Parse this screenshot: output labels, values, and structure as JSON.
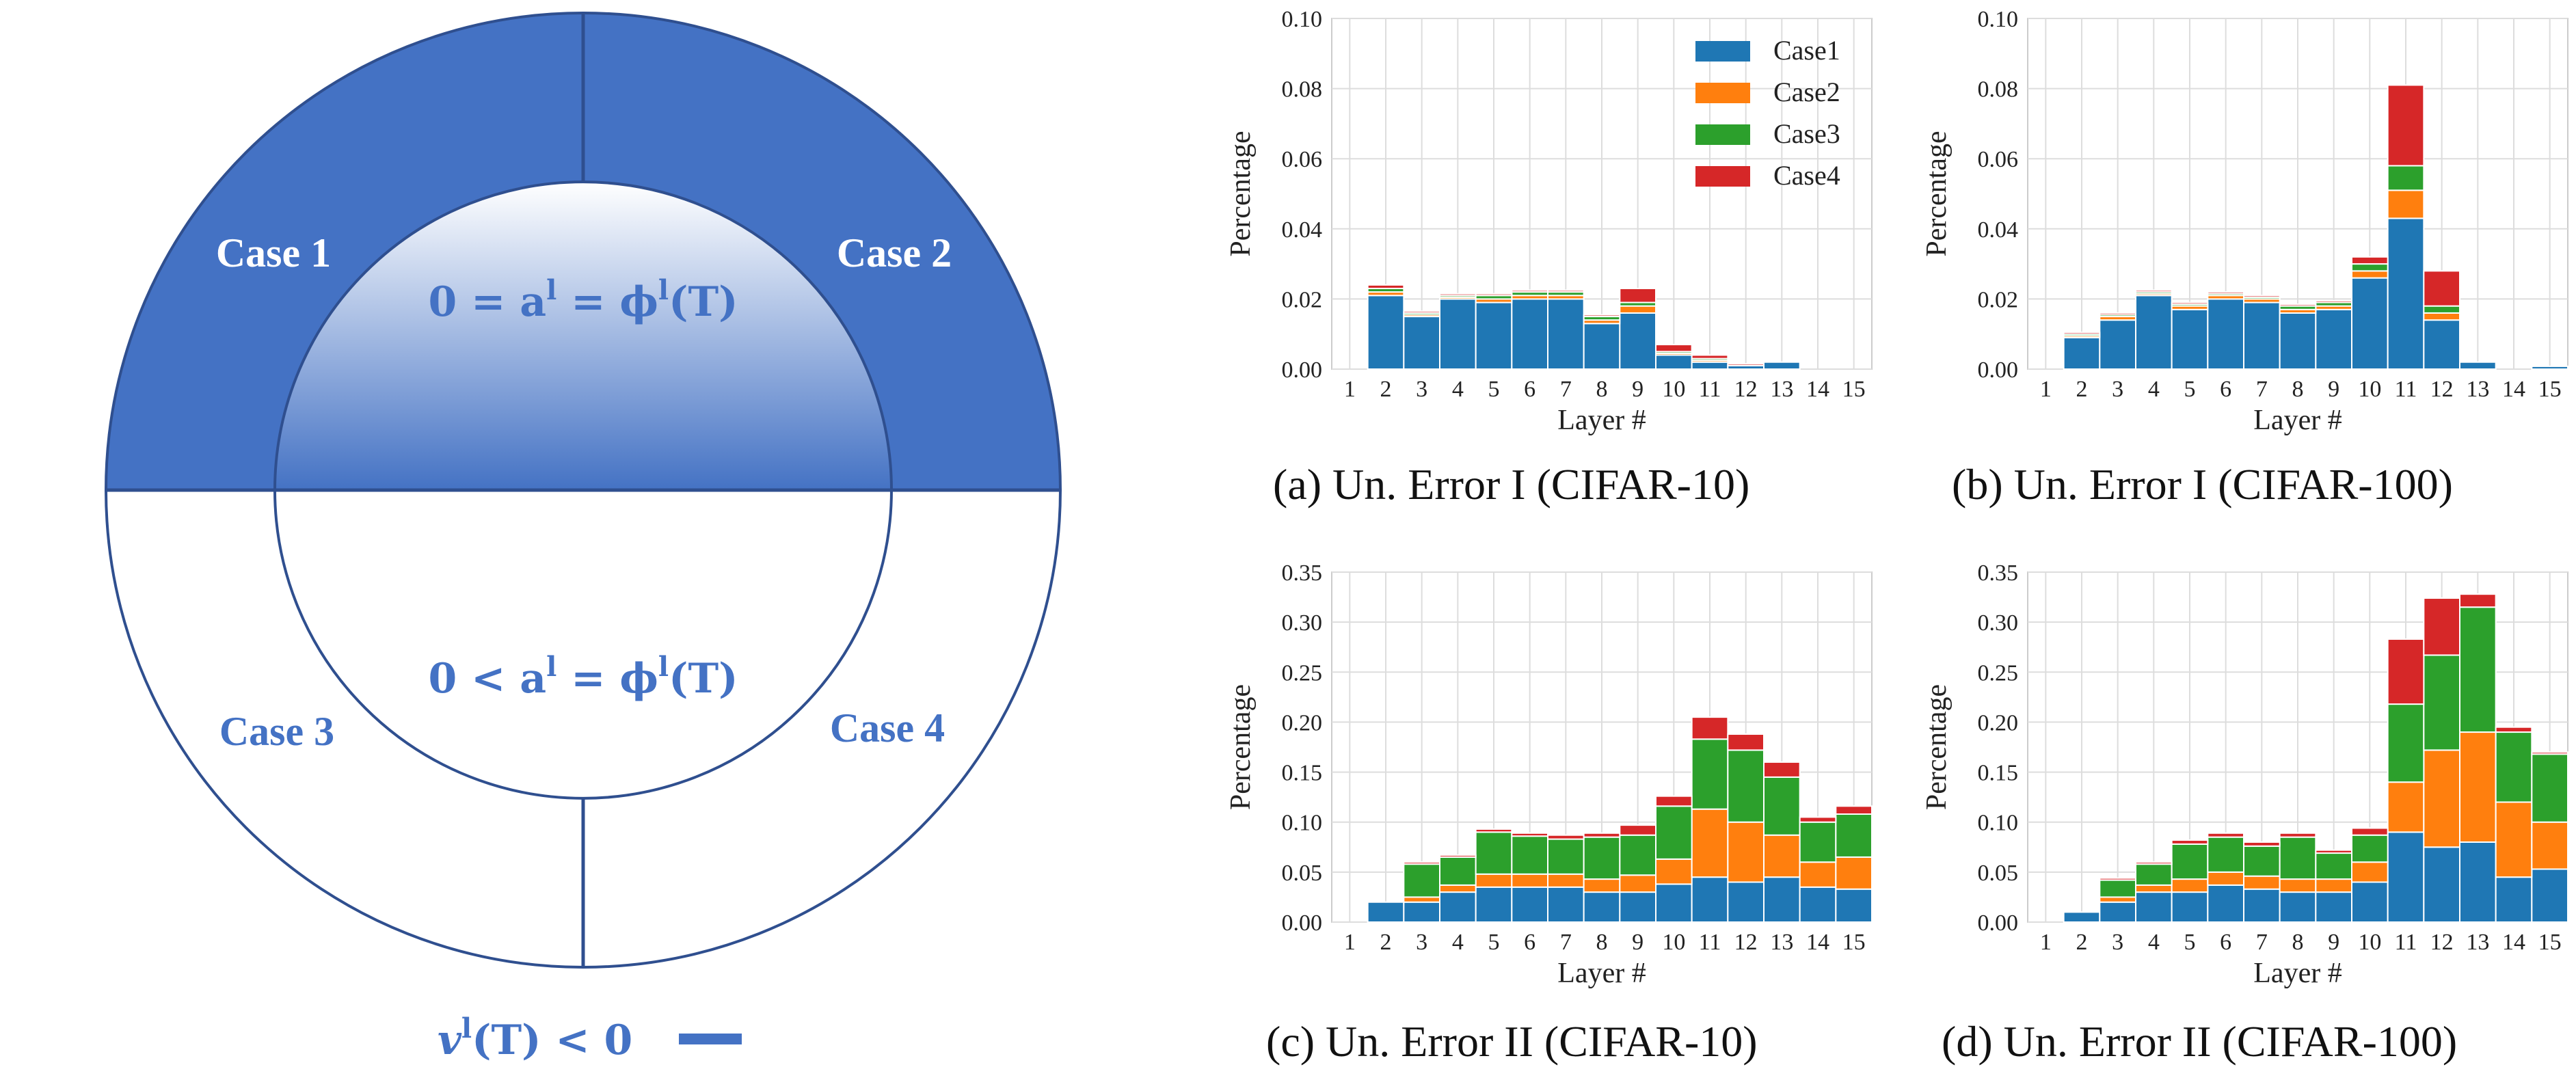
{
  "diagram": {
    "case1": "Case 1",
    "case2": "Case 2",
    "case3": "Case 3",
    "case4": "Case 4",
    "eq_top": "0 = a",
    "eq_top_sup": "l",
    "eq_top_rest": " = ϕ",
    "eq_top_sup2": "l",
    "eq_top_end": "(T)",
    "eq_bot": "0 < a",
    "eq_bot_sup": "l",
    "eq_bot_rest": " = ϕ",
    "eq_bot_sup2": "l",
    "eq_bot_end": "(T)",
    "legend_v": "v",
    "legend_sup": "l",
    "legend_rest": "(T) < 0",
    "colors": {
      "fill": "#4472c4",
      "stroke": "#2f4f8f",
      "text": "#4472c4"
    }
  },
  "series_colors": {
    "Case1": "#1f77b4",
    "Case2": "#ff7f0e",
    "Case3": "#2ca02c",
    "Case4": "#d62728"
  },
  "chart_data": [
    {
      "id": "a",
      "type": "bar",
      "stacked": true,
      "caption": "(a)  Un. Error I (CIFAR-10)",
      "xlabel": "Layer #",
      "ylabel": "Percentage",
      "categories": [
        "1",
        "2",
        "3",
        "4",
        "5",
        "6",
        "7",
        "8",
        "9",
        "10",
        "11",
        "12",
        "13",
        "14",
        "15"
      ],
      "ylim": [
        0,
        0.1
      ],
      "yticks": [
        "0.00",
        "0.02",
        "0.04",
        "0.06",
        "0.08",
        "0.10"
      ],
      "legend": {
        "position": "top-right",
        "entries": [
          "Case1",
          "Case2",
          "Case3",
          "Case4"
        ]
      },
      "grid": true,
      "series": [
        {
          "name": "Case1",
          "values": [
            0,
            0.021,
            0.015,
            0.02,
            0.019,
            0.02,
            0.02,
            0.013,
            0.016,
            0.004,
            0.002,
            0.001,
            0.002,
            0,
            0
          ]
        },
        {
          "name": "Case2",
          "values": [
            0,
            0.001,
            0.0005,
            0.0005,
            0.001,
            0.001,
            0.001,
            0.001,
            0.002,
            0.0005,
            0.0005,
            0,
            0,
            0,
            0
          ]
        },
        {
          "name": "Case3",
          "values": [
            0,
            0.001,
            0.0005,
            0.0005,
            0.001,
            0.001,
            0.001,
            0.001,
            0.001,
            0.0005,
            0.0005,
            0,
            0,
            0,
            0
          ]
        },
        {
          "name": "Case4",
          "values": [
            0,
            0.001,
            0.0005,
            0.0005,
            0.0005,
            0.0005,
            0.0005,
            0.0005,
            0.004,
            0.002,
            0.001,
            0.0005,
            0,
            0,
            0
          ]
        }
      ]
    },
    {
      "id": "b",
      "type": "bar",
      "stacked": true,
      "caption": "(b)  Un. Error I (CIFAR-100)",
      "xlabel": "Layer #",
      "ylabel": "Percentage",
      "categories": [
        "1",
        "2",
        "3",
        "4",
        "5",
        "6",
        "7",
        "8",
        "9",
        "10",
        "11",
        "12",
        "13",
        "14",
        "15"
      ],
      "ylim": [
        0,
        0.1
      ],
      "yticks": [
        "0.00",
        "0.02",
        "0.04",
        "0.06",
        "0.08",
        "0.10"
      ],
      "grid": true,
      "series": [
        {
          "name": "Case1",
          "values": [
            0,
            0.009,
            0.014,
            0.021,
            0.017,
            0.02,
            0.019,
            0.016,
            0.017,
            0.026,
            0.043,
            0.014,
            0.002,
            0,
            0.0008
          ]
        },
        {
          "name": "Case2",
          "values": [
            0,
            0.0005,
            0.001,
            0.0005,
            0.001,
            0.001,
            0.001,
            0.001,
            0.001,
            0.002,
            0.008,
            0.002,
            0,
            0,
            0
          ]
        },
        {
          "name": "Case3",
          "values": [
            0,
            0.0005,
            0.0005,
            0.0005,
            0.0005,
            0.0005,
            0.0005,
            0.001,
            0.001,
            0.002,
            0.007,
            0.002,
            0,
            0,
            0
          ]
        },
        {
          "name": "Case4",
          "values": [
            0,
            0.0005,
            0.0005,
            0.0005,
            0.0005,
            0.0005,
            0.0005,
            0.0005,
            0.0005,
            0.002,
            0.023,
            0.01,
            0,
            0,
            0
          ]
        }
      ]
    },
    {
      "id": "c",
      "type": "bar",
      "stacked": true,
      "caption": "(c)  Un. Error II (CIFAR-10)",
      "xlabel": "Layer #",
      "ylabel": "Percentage",
      "categories": [
        "1",
        "2",
        "3",
        "4",
        "5",
        "6",
        "7",
        "8",
        "9",
        "10",
        "11",
        "12",
        "13",
        "14",
        "15"
      ],
      "ylim": [
        0,
        0.35
      ],
      "yticks": [
        "0.00",
        "0.05",
        "0.10",
        "0.15",
        "0.20",
        "0.25",
        "0.30",
        "0.35"
      ],
      "grid": true,
      "series": [
        {
          "name": "Case1",
          "values": [
            0,
            0.02,
            0.02,
            0.03,
            0.035,
            0.035,
            0.035,
            0.03,
            0.03,
            0.038,
            0.045,
            0.04,
            0.045,
            0.035,
            0.033
          ]
        },
        {
          "name": "Case2",
          "values": [
            0,
            0,
            0.005,
            0.007,
            0.013,
            0.013,
            0.013,
            0.013,
            0.017,
            0.025,
            0.068,
            0.06,
            0.042,
            0.025,
            0.032
          ]
        },
        {
          "name": "Case3",
          "values": [
            0,
            0,
            0.033,
            0.028,
            0.042,
            0.038,
            0.035,
            0.042,
            0.04,
            0.053,
            0.07,
            0.072,
            0.058,
            0.04,
            0.043
          ]
        },
        {
          "name": "Case4",
          "values": [
            0,
            0,
            0.002,
            0.002,
            0.003,
            0.003,
            0.004,
            0.004,
            0.01,
            0.01,
            0.022,
            0.016,
            0.015,
            0.005,
            0.008
          ]
        }
      ]
    },
    {
      "id": "d",
      "type": "bar",
      "stacked": true,
      "caption": "(d)  Un. Error II (CIFAR-100)",
      "xlabel": "Layer #",
      "ylabel": "Percentage",
      "categories": [
        "1",
        "2",
        "3",
        "4",
        "5",
        "6",
        "7",
        "8",
        "9",
        "10",
        "11",
        "12",
        "13",
        "14",
        "15"
      ],
      "ylim": [
        0,
        0.35
      ],
      "yticks": [
        "0.00",
        "0.05",
        "0.10",
        "0.15",
        "0.20",
        "0.25",
        "0.30",
        "0.35"
      ],
      "grid": true,
      "series": [
        {
          "name": "Case1",
          "values": [
            0,
            0.01,
            0.02,
            0.03,
            0.03,
            0.037,
            0.033,
            0.03,
            0.03,
            0.04,
            0.09,
            0.075,
            0.08,
            0.045,
            0.053
          ]
        },
        {
          "name": "Case2",
          "values": [
            0,
            0,
            0.005,
            0.007,
            0.013,
            0.013,
            0.013,
            0.013,
            0.013,
            0.02,
            0.05,
            0.097,
            0.11,
            0.075,
            0.047
          ]
        },
        {
          "name": "Case3",
          "values": [
            0,
            0,
            0.017,
            0.021,
            0.035,
            0.035,
            0.03,
            0.042,
            0.026,
            0.027,
            0.078,
            0.095,
            0.125,
            0.07,
            0.068
          ]
        },
        {
          "name": "Case4",
          "values": [
            0,
            0,
            0.002,
            0.002,
            0.004,
            0.004,
            0.004,
            0.004,
            0.003,
            0.007,
            0.065,
            0.057,
            0.013,
            0.005,
            0.002
          ]
        }
      ]
    }
  ]
}
